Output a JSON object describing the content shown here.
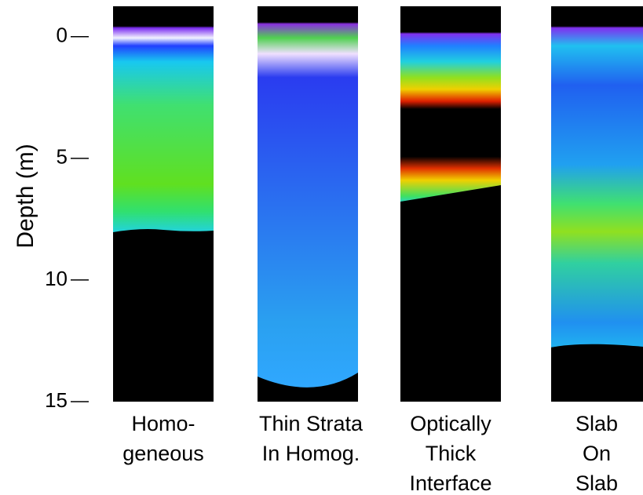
{
  "chart_data": {
    "type": "panels",
    "y_label": "Depth (m)",
    "ylim": [
      -1.25,
      15
    ],
    "y_inverted": true,
    "yticks": [
      0,
      5,
      10,
      15
    ],
    "categories": [
      [
        "Homo-",
        "geneous"
      ],
      [
        "Thin Strata",
        "In Homog."
      ],
      [
        "Optically",
        "Thick",
        "Interface"
      ],
      [
        "Slab",
        "On",
        "Slab"
      ]
    ]
  }
}
